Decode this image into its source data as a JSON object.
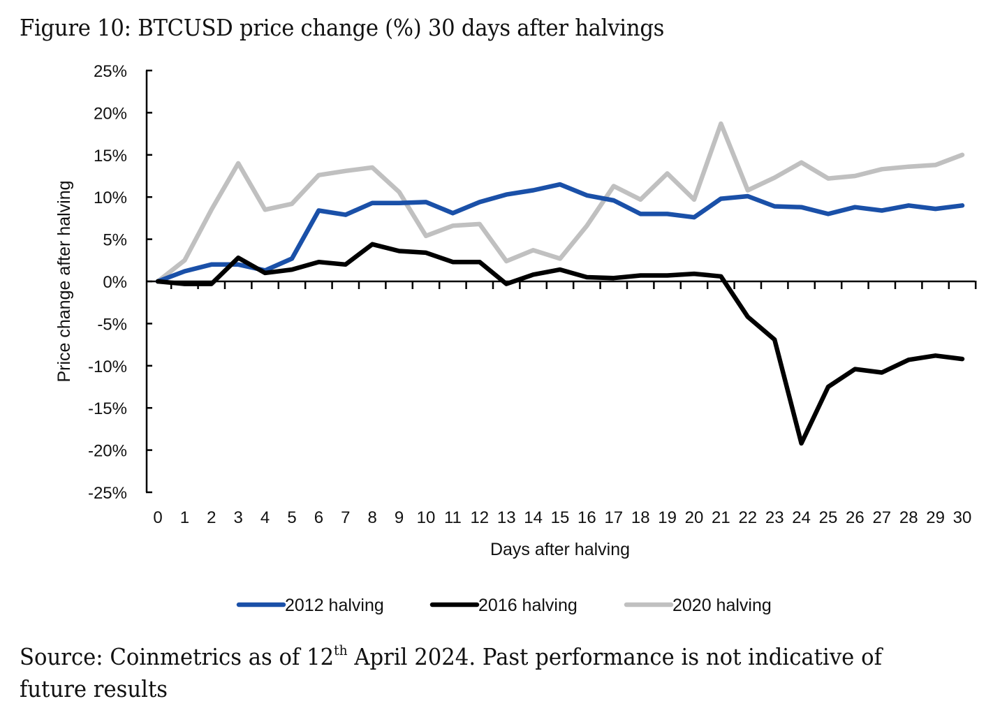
{
  "figure": {
    "title": "Figure 10: BTCUSD price change (%) 30 days after halvings",
    "source_prefix": "Source: Coinmetrics as of 12",
    "source_sup": "th",
    "source_suffix": " April 2024. Past performance is not indicative of future results"
  },
  "chart_data": {
    "type": "line",
    "title": "BTCUSD price change (%) 30 days after halvings",
    "xlabel": "Days after halving",
    "ylabel": "Price change after halving",
    "x": [
      0,
      1,
      2,
      3,
      4,
      5,
      6,
      7,
      8,
      9,
      10,
      11,
      12,
      13,
      14,
      15,
      16,
      17,
      18,
      19,
      20,
      21,
      22,
      23,
      24,
      25,
      26,
      27,
      28,
      29,
      30
    ],
    "x_tick_labels": [
      "0",
      "1",
      "2",
      "3",
      "4",
      "5",
      "6",
      "7",
      "8",
      "9",
      "10",
      "11",
      "12",
      "13",
      "14",
      "15",
      "16",
      "17",
      "18",
      "19",
      "20",
      "21",
      "22",
      "23",
      "24",
      "25",
      "26",
      "27",
      "28",
      "29",
      "30"
    ],
    "ylim": [
      -25,
      25
    ],
    "y_ticks": [
      25,
      20,
      15,
      10,
      5,
      0,
      -5,
      -10,
      -15,
      -20,
      -25
    ],
    "y_tick_labels": [
      "25%",
      "20%",
      "15%",
      "10%",
      "5%",
      "0%",
      "-5%",
      "-10%",
      "-15%",
      "-20%",
      "-25%"
    ],
    "grid": false,
    "legend_position": "bottom",
    "series": [
      {
        "name": "2012 halving",
        "color": "#1a50a8",
        "values": [
          0,
          1.2,
          2.0,
          2.0,
          1.3,
          2.7,
          8.4,
          7.9,
          9.3,
          9.3,
          9.4,
          8.1,
          9.4,
          10.3,
          10.8,
          11.5,
          10.2,
          9.6,
          8.0,
          8.0,
          7.6,
          9.8,
          10.1,
          8.9,
          8.8,
          8.0,
          8.8,
          8.4,
          9.0,
          8.6,
          9.0
        ]
      },
      {
        "name": "2016 halving",
        "color": "#000000",
        "values": [
          0,
          -0.3,
          -0.3,
          2.8,
          1.0,
          1.4,
          2.3,
          2.0,
          4.4,
          3.6,
          3.4,
          2.3,
          2.3,
          -0.3,
          0.8,
          1.4,
          0.5,
          0.4,
          0.7,
          0.7,
          0.9,
          0.6,
          -4.2,
          -6.9,
          -19.2,
          -12.5,
          -10.4,
          -10.8,
          -9.3,
          -8.8,
          -9.2
        ]
      },
      {
        "name": "2020 halving",
        "color": "#c0c0c0",
        "values": [
          0,
          2.5,
          8.5,
          14.0,
          8.5,
          9.2,
          12.6,
          13.1,
          13.5,
          10.6,
          5.4,
          6.6,
          6.8,
          2.4,
          3.7,
          2.7,
          6.6,
          11.3,
          9.7,
          12.8,
          9.7,
          18.7,
          10.8,
          12.3,
          14.1,
          12.2,
          12.5,
          13.3,
          13.6,
          13.8,
          15.0
        ]
      }
    ]
  }
}
